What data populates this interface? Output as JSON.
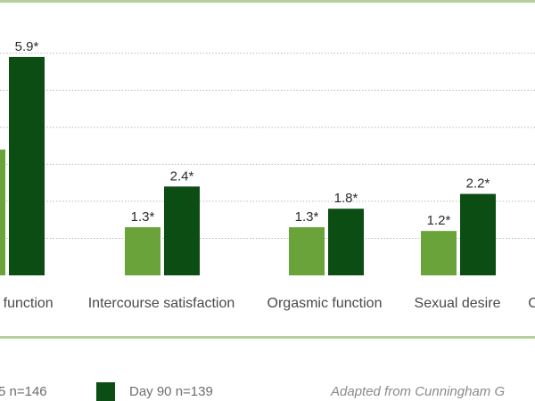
{
  "chart_data": {
    "type": "bar",
    "categories": [
      "e function",
      "Intercourse satisfaction",
      "Orgasmic function",
      "Sexual desire",
      "C"
    ],
    "series": [
      {
        "name": "5 n=146",
        "values": [
          3.4,
          1.3,
          1.3,
          1.2,
          null
        ],
        "labels": [
          "",
          "1.3*",
          "1.3*",
          "1.2*",
          ""
        ],
        "color": "#6aa33a"
      },
      {
        "name": "Day 90 n=139",
        "values": [
          5.9,
          2.4,
          1.8,
          2.2,
          null
        ],
        "labels": [
          "5.9*",
          "2.4*",
          "1.8*",
          "2.2*",
          ""
        ],
        "color": "#0b4d12"
      }
    ],
    "ylim": [
      0,
      6.5
    ],
    "grid": true,
    "legend_placement": "bottom",
    "annotation": "Adapted from Cunningham G",
    "title": "",
    "xlabel": "",
    "ylabel": ""
  },
  "colors": {
    "accent_line": "#b5cf9b",
    "grid": "#b9b9b9"
  }
}
